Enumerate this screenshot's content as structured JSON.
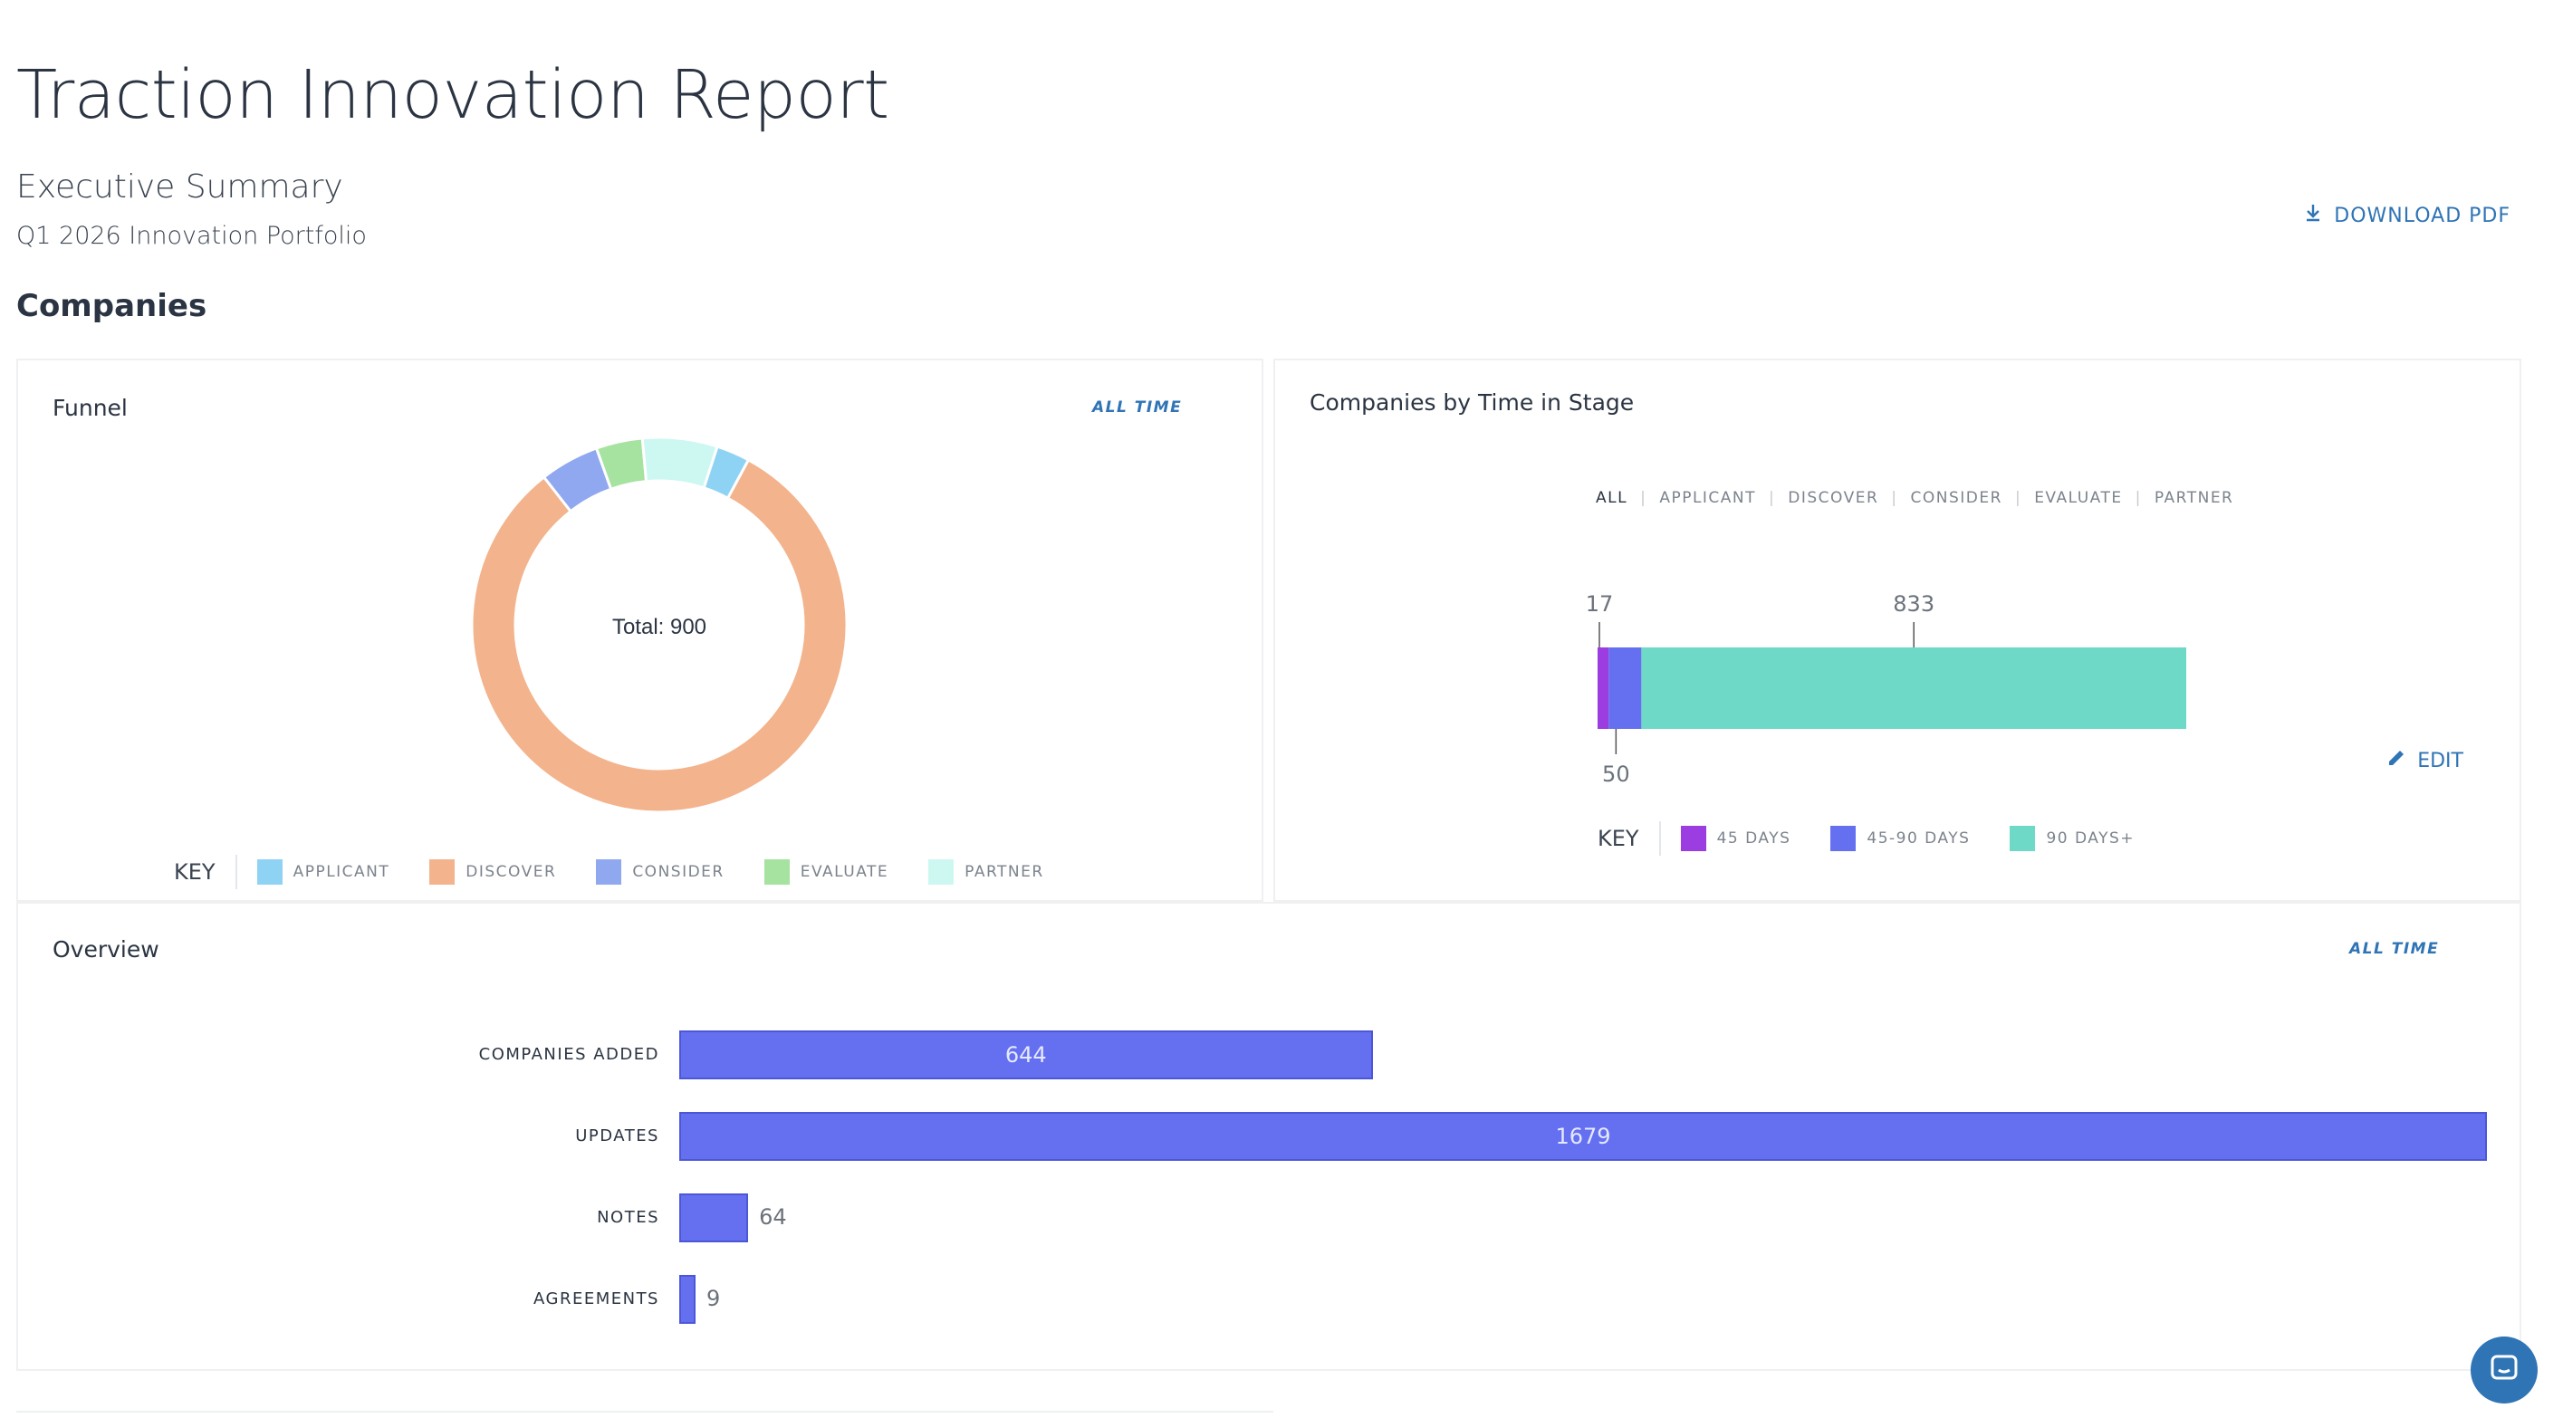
{
  "header": {
    "title": "Traction Innovation Report",
    "subtitle": "Executive Summary",
    "period": "Q1 2026 Innovation Portfolio",
    "download_label": "DOWNLOAD PDF",
    "section_title": "Companies"
  },
  "funnel": {
    "title": "Funnel",
    "range_label": "ALL TIME",
    "center_label": "Total: 900",
    "key_label": "KEY",
    "legend": [
      {
        "label": "APPLICANT",
        "color": "#8fd3f4"
      },
      {
        "label": "DISCOVER",
        "color": "#f3b38c"
      },
      {
        "label": "CONSIDER",
        "color": "#8fa8f0"
      },
      {
        "label": "EVALUATE",
        "color": "#a6e2a0"
      },
      {
        "label": "PARTNER",
        "color": "#cdf7f1"
      }
    ]
  },
  "time_in_stage": {
    "title": "Companies by Time in Stage",
    "edit_label": "EDIT",
    "filters": [
      "ALL",
      "APPLICANT",
      "DISCOVER",
      "CONSIDER",
      "EVALUATE",
      "PARTNER"
    ],
    "active_filter": "ALL",
    "key_label": "KEY",
    "legend": [
      {
        "label": "45 DAYS",
        "color": "#9b3de0"
      },
      {
        "label": "45-90 DAYS",
        "color": "#6470f0"
      },
      {
        "label": "90 DAYS+",
        "color": "#6fd9c7"
      }
    ]
  },
  "overview": {
    "title": "Overview",
    "range_label": "ALL TIME"
  },
  "chart_data": [
    {
      "type": "pie",
      "categories": [
        "APPLICANT",
        "DISCOVER",
        "CONSIDER",
        "EVALUATE",
        "PARTNER"
      ],
      "values": [
        26,
        734,
        46,
        36,
        58
      ],
      "total": 900,
      "colors": [
        "#8fd3f4",
        "#f3b38c",
        "#8fa8f0",
        "#a6e2a0",
        "#cdf7f1"
      ]
    },
    {
      "type": "bar",
      "stacked": true,
      "orientation": "horizontal",
      "series": [
        {
          "name": "45 DAYS",
          "values": [
            17
          ]
        },
        {
          "name": "45-90 DAYS",
          "values": [
            50
          ]
        },
        {
          "name": "90 DAYS+",
          "values": [
            833
          ]
        }
      ],
      "colors": [
        "#9b3de0",
        "#6470f0",
        "#6fd9c7"
      ]
    },
    {
      "type": "bar",
      "orientation": "horizontal",
      "categories": [
        "COMPANIES ADDED",
        "UPDATES",
        "NOTES",
        "AGREEMENTS"
      ],
      "values": [
        644,
        1679,
        64,
        9
      ]
    }
  ]
}
